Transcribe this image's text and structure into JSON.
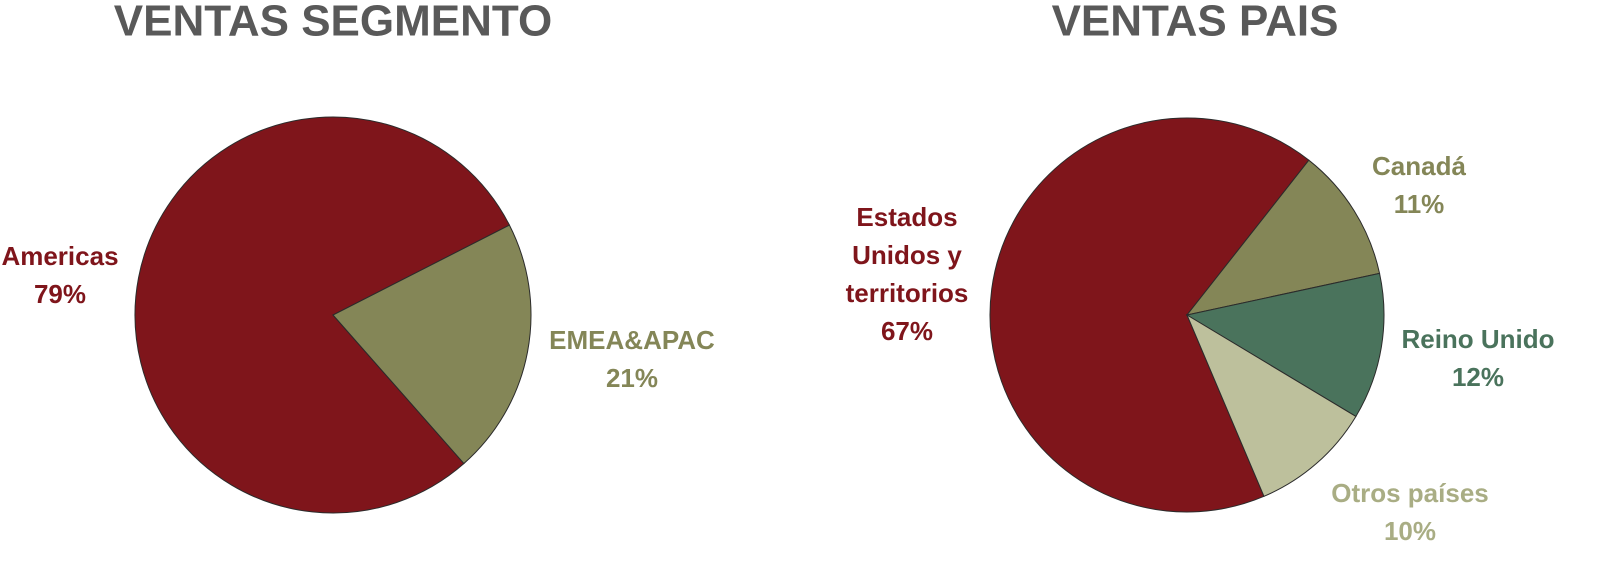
{
  "chart_data": [
    {
      "type": "pie",
      "title": "VENTAS SEGMENTO",
      "categories": [
        "Americas",
        "EMEA&APAC"
      ],
      "values": [
        79,
        21
      ],
      "value_labels": [
        "79%",
        "21%"
      ],
      "colors": [
        "#7f151b",
        "#848657"
      ]
    },
    {
      "type": "pie",
      "title": "VENTAS PAIS",
      "categories": [
        "Estados Unidos y territorios",
        "Canadá",
        "Reino Unido",
        "Otros países"
      ],
      "values": [
        67,
        11,
        12,
        10
      ],
      "value_labels": [
        "67%",
        "11%",
        "12%",
        "10%"
      ],
      "colors": [
        "#7f151b",
        "#848657",
        "#4a735c",
        "#bdc09c"
      ]
    }
  ]
}
